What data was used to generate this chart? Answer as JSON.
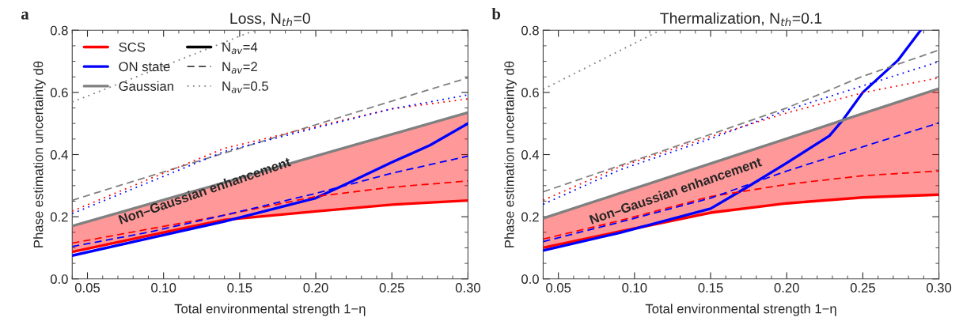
{
  "chart_data": [
    {
      "type": "line",
      "title": "Loss, N$_{th}$=0",
      "xlabel": "Total environmental strength 1−η",
      "ylabel": "Phase estimation uncertainty dθ",
      "annotations": [
        "a",
        "Non–Gaussian enhancement"
      ],
      "x": [
        0.04,
        0.09,
        0.14,
        0.2,
        0.25,
        0.3
      ],
      "xlim": [
        0.04,
        0.3
      ],
      "ylim": [
        0,
        0.8
      ],
      "xticks": [
        {
          "value": 0.05,
          "label": "0.05"
        },
        {
          "value": 0.1,
          "label": "0.10"
        },
        {
          "value": 0.15,
          "label": "0.15"
        },
        {
          "value": 0.2,
          "label": "0.20"
        },
        {
          "value": 0.25,
          "label": "0.25"
        },
        {
          "value": 0.3,
          "label": "0.30"
        }
      ],
      "yticks": [
        {
          "value": 0,
          "label": "0.0"
        },
        0.2,
        0.4,
        0.6,
        0.8
      ],
      "grid": false,
      "legend": "top left",
      "series": [
        {
          "name": "SCS",
          "color": "#ff0000",
          "line_style": "solid",
          "values": [
            0.087,
            0.139,
            0.19,
            0.217,
            0.239,
            0.252
          ],
          "lower": [
            0.087,
            0.139,
            0.19,
            0.217,
            0.239,
            0.252
          ],
          "upper": [
            0.17,
            0.24,
            0.31,
            0.395,
            0.465,
            0.535
          ]
        },
        {
          "name": "ON state",
          "color": "#0000ff",
          "line_style": "solid",
          "x": [
            0.04,
            0.09,
            0.14,
            0.2,
            0.22,
            0.25,
            0.275,
            0.3
          ],
          "values": [
            0.075,
            0.13,
            0.185,
            0.26,
            0.305,
            0.375,
            0.43,
            0.5
          ]
        },
        {
          "name": "Gaussian",
          "color": "#808080",
          "line_style": "solid",
          "values": [
            0.17,
            0.24,
            0.31,
            0.395,
            0.465,
            0.535
          ]
        },
        {
          "color": "#ff0000",
          "line_style": "dashed",
          "values": [
            0.115,
            0.16,
            0.205,
            0.265,
            0.295,
            0.315
          ]
        },
        {
          "color": "#0000ff",
          "line_style": "dashed",
          "values": [
            0.104,
            0.15,
            0.205,
            0.275,
            0.34,
            0.395
          ]
        },
        {
          "color": "#808080",
          "line_style": "dashed",
          "values": [
            0.253,
            0.329,
            0.405,
            0.496,
            0.572,
            0.647
          ]
        },
        {
          "color": "#ff0000",
          "line_style": "dotted",
          "values": [
            0.218,
            0.32,
            0.42,
            0.49,
            0.547,
            0.579
          ]
        },
        {
          "color": "#0000ff",
          "line_style": "dotted",
          "values": [
            0.21,
            0.31,
            0.41,
            0.486,
            0.547,
            0.592
          ]
        },
        {
          "color": "#808080",
          "line_style": "dotted",
          "x": [
            0.04,
            0.16
          ],
          "values": [
            0.569,
            0.8
          ]
        },
        {
          "name": "N$_{av}$=4",
          "color": "#000000",
          "line_style": "solid",
          "values": [
            null,
            null,
            null,
            null,
            null,
            null
          ]
        },
        {
          "name": "N$_{av}$=2",
          "color": "#404040",
          "line_style": "dashed",
          "values": [
            null,
            null,
            null,
            null,
            null,
            null
          ]
        },
        {
          "name": "N$_{av}$=0.5",
          "color": "#808080",
          "line_style": "dotted",
          "values": [
            null,
            null,
            null,
            null,
            null,
            null
          ]
        }
      ]
    },
    {
      "type": "line",
      "title": "Thermalization, N$_{th}$=0.1",
      "xlabel": "Total environmental strength 1−η",
      "ylabel": "Phase estimation uncertainty dθ",
      "annotations": [
        "b",
        "Non–Gaussian enhancement"
      ],
      "x": [
        0.04,
        0.09,
        0.15,
        0.2,
        0.25,
        0.3
      ],
      "xlim": [
        0.04,
        0.3
      ],
      "ylim": [
        0,
        0.8
      ],
      "xticks": [
        {
          "value": 0.05,
          "label": "0.05"
        },
        {
          "value": 0.1,
          "label": "0.10"
        },
        {
          "value": 0.15,
          "label": "0.15"
        },
        {
          "value": 0.2,
          "label": "0.20"
        },
        {
          "value": 0.25,
          "label": "0.25"
        },
        {
          "value": 0.3,
          "label": "0.30"
        }
      ],
      "yticks": [
        {
          "value": 0,
          "label": "0.0"
        },
        0.2,
        0.4,
        0.6,
        0.8
      ],
      "grid": false,
      "series": [
        {
          "color": "#ff0000",
          "line_style": "solid",
          "values": [
            0.1,
            0.152,
            0.213,
            0.243,
            0.262,
            0.271
          ],
          "lower": [
            0.1,
            0.152,
            0.213,
            0.243,
            0.262,
            0.271
          ],
          "upper": [
            0.195,
            0.275,
            0.371,
            0.451,
            0.532,
            0.612
          ]
        },
        {
          "color": "#0000ff",
          "line_style": "solid",
          "x": [
            0.04,
            0.09,
            0.15,
            0.174,
            0.2,
            0.228,
            0.237,
            0.25,
            0.273,
            0.288
          ],
          "values": [
            0.091,
            0.148,
            0.226,
            0.295,
            0.373,
            0.46,
            0.512,
            0.6,
            0.703,
            0.8
          ]
        },
        {
          "color": "#808080",
          "line_style": "solid",
          "values": [
            0.195,
            0.275,
            0.371,
            0.451,
            0.532,
            0.612
          ]
        },
        {
          "color": "#ff0000",
          "line_style": "dashed",
          "values": [
            0.128,
            0.187,
            0.265,
            0.304,
            0.332,
            0.347
          ]
        },
        {
          "color": "#0000ff",
          "line_style": "dashed",
          "values": [
            0.12,
            0.182,
            0.26,
            0.347,
            0.425,
            0.502
          ]
        },
        {
          "color": "#808080",
          "line_style": "dashed",
          "values": [
            0.28,
            0.364,
            0.465,
            0.55,
            0.652,
            0.736
          ]
        },
        {
          "color": "#ff0000",
          "line_style": "dotted",
          "values": [
            0.253,
            0.36,
            0.458,
            0.534,
            0.599,
            0.647
          ]
        },
        {
          "color": "#0000ff",
          "line_style": "dotted",
          "values": [
            0.24,
            0.35,
            0.451,
            0.543,
            0.621,
            0.699
          ]
        },
        {
          "color": "#808080",
          "line_style": "dotted",
          "x": [
            0.04,
            0.117
          ],
          "values": [
            0.61,
            0.8
          ]
        }
      ]
    }
  ]
}
